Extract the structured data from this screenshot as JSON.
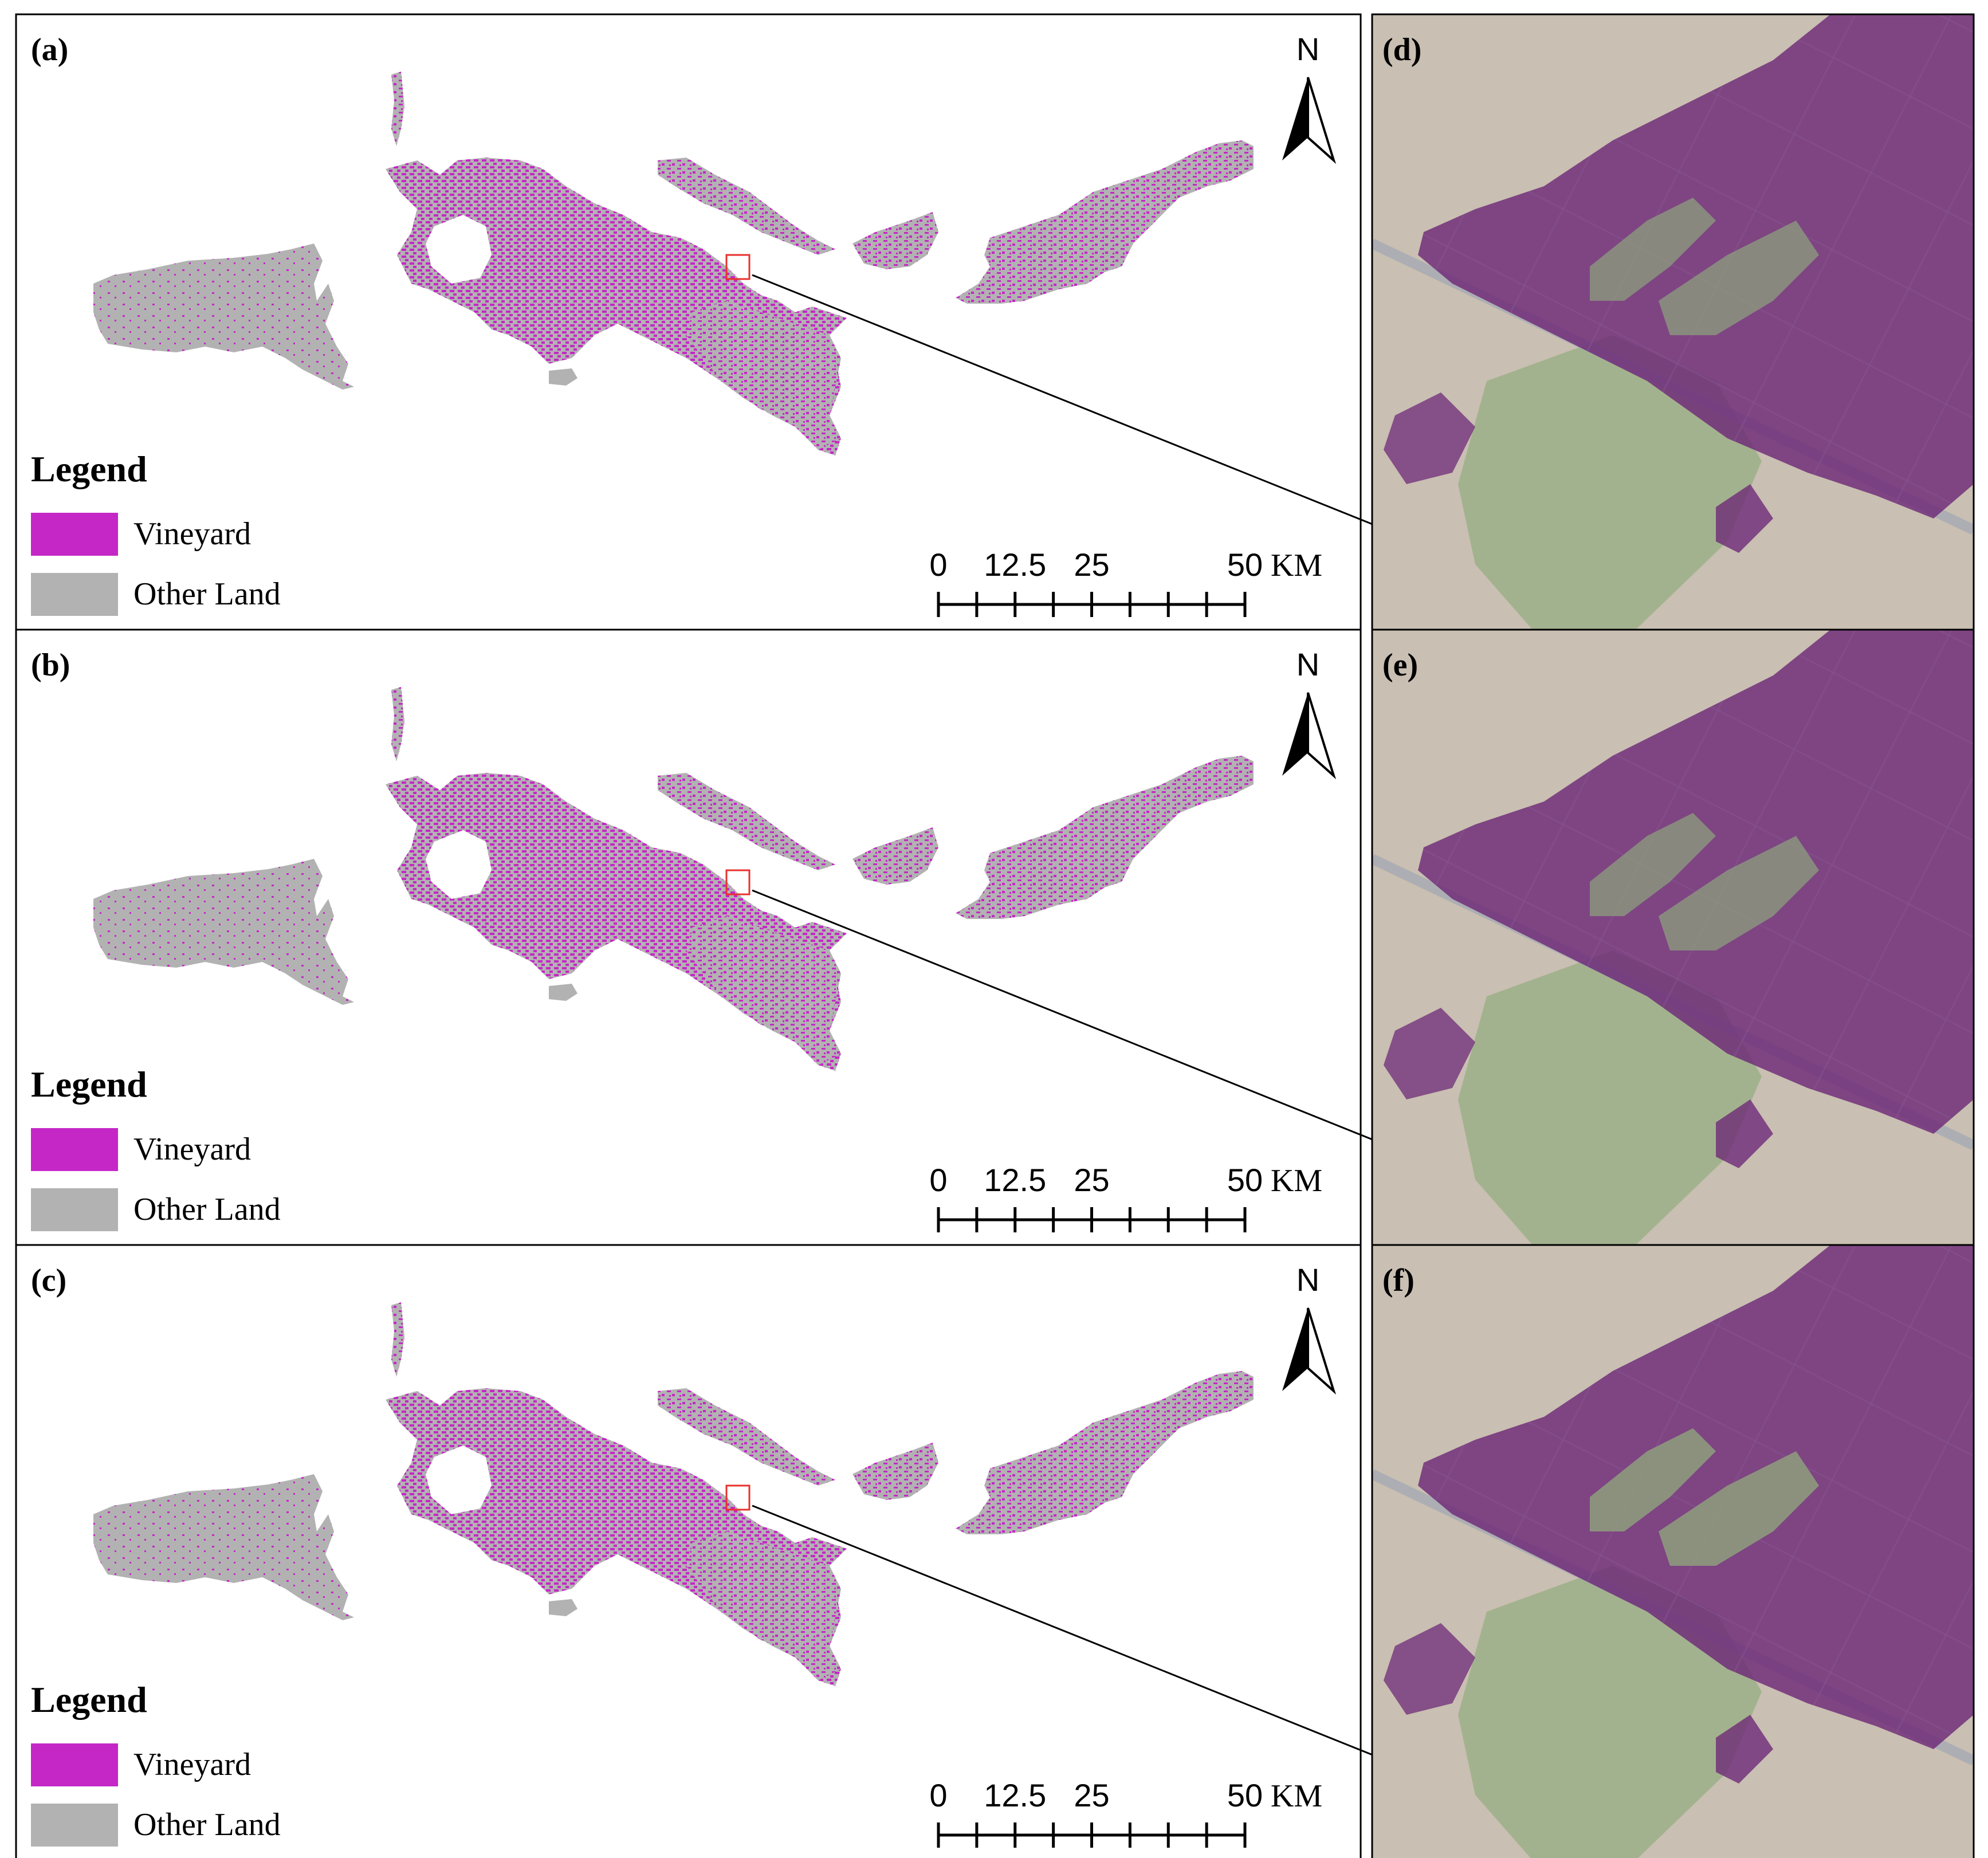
{
  "colors": {
    "vineyard": "#c527c6",
    "other_land": "#b2b2b2",
    "frame": "#000000",
    "inset_box": "#e8312d",
    "satellite_base": "#c9bfb2",
    "satellite_field": "#9fb08a",
    "overlay_purple": "#6e2a78"
  },
  "map_panels": [
    {
      "label": "(a)"
    },
    {
      "label": "(b)"
    },
    {
      "label": "(c)"
    }
  ],
  "zoom_panels": [
    {
      "label": "(d)"
    },
    {
      "label": "(e)"
    },
    {
      "label": "(f)"
    }
  ],
  "legend": {
    "title": "Legend",
    "items": [
      {
        "label": "Vineyard",
        "color": "#c527c6"
      },
      {
        "label": "Other Land",
        "color": "#b2b2b2"
      }
    ]
  },
  "north_arrow": {
    "letter": "N"
  },
  "scale_bar": {
    "ticks": [
      "0",
      "12.5",
      "25",
      "50"
    ],
    "unit": "KM"
  }
}
